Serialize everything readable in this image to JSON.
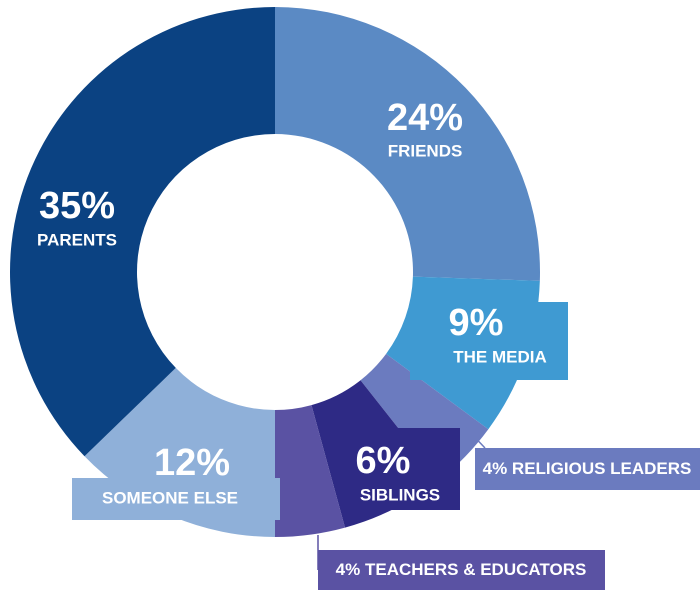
{
  "chart_data": {
    "type": "donut",
    "categories": [
      "FRIENDS",
      "THE MEDIA",
      "RELIGIOUS LEADERS",
      "SIBLINGS",
      "TEACHERS & EDUCATORS",
      "SOMEONE ELSE",
      "PARENTS"
    ],
    "values": [
      24,
      9,
      4,
      6,
      4,
      12,
      35
    ],
    "value_labels": [
      "24%",
      "9%",
      "4%",
      "6%",
      "4%",
      "12%",
      "35%"
    ],
    "colors": [
      "#5b8ac4",
      "#3f9ad2",
      "#6b7bbf",
      "#2e2a85",
      "#5a52a3",
      "#8fb0d9",
      "#0b4282"
    ]
  }
}
